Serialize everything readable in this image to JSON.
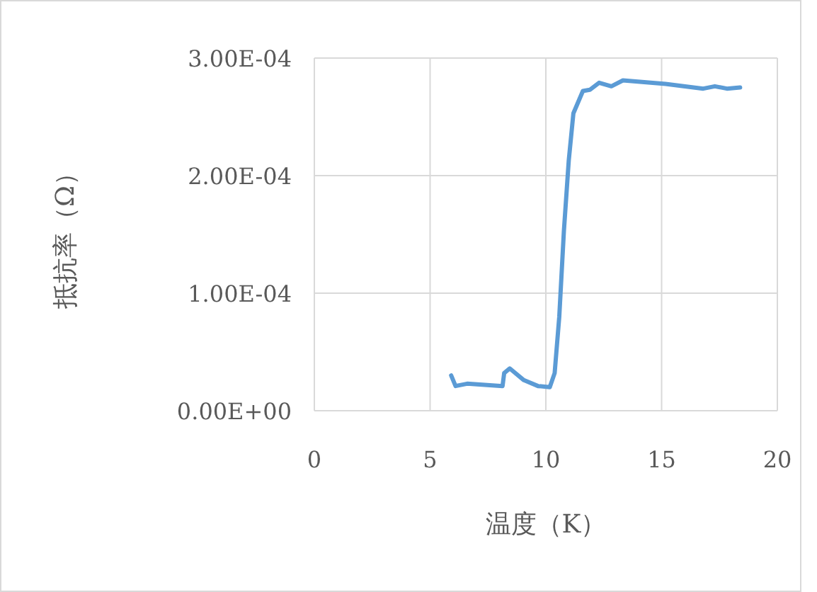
{
  "chart_data": {
    "type": "line",
    "xlabel": "温度（K）",
    "ylabel": "抵抗率（Ω）",
    "xlim": [
      0,
      20
    ],
    "xticks": [
      0,
      5,
      10,
      15,
      20
    ],
    "ylim": [
      0,
      0.0003
    ],
    "yticks": [
      {
        "value": 0,
        "label": "0.00E+00"
      },
      {
        "value": 0.0001,
        "label": "1.00E-04"
      },
      {
        "value": 0.0002,
        "label": "2.00E-04"
      },
      {
        "value": 0.0003,
        "label": "3.00E-04"
      }
    ],
    "grid": true,
    "marker": "none",
    "line_style": "solid",
    "series": [
      {
        "color": "#5b9bd5",
        "x": [
          5.91,
          6.1,
          6.6,
          8.13,
          8.2,
          8.44,
          9.05,
          9.66,
          10.17,
          10.38,
          10.58,
          10.78,
          10.99,
          11.19,
          11.6,
          11.9,
          12.3,
          12.83,
          13.33,
          15.17,
          16.8,
          17.3,
          17.82,
          18.39
        ],
        "values": [
          3e-05,
          2.1e-05,
          2.3e-05,
          2.1e-05,
          3.2e-05,
          3.6e-05,
          2.6e-05,
          2.1e-05,
          2e-05,
          3.2e-05,
          8e-05,
          0.000153,
          0.000213,
          0.000253,
          0.000272,
          0.000273,
          0.000279,
          0.000276,
          0.000281,
          0.000278,
          0.000274,
          0.000276,
          0.000274,
          0.000275
        ]
      }
    ]
  }
}
